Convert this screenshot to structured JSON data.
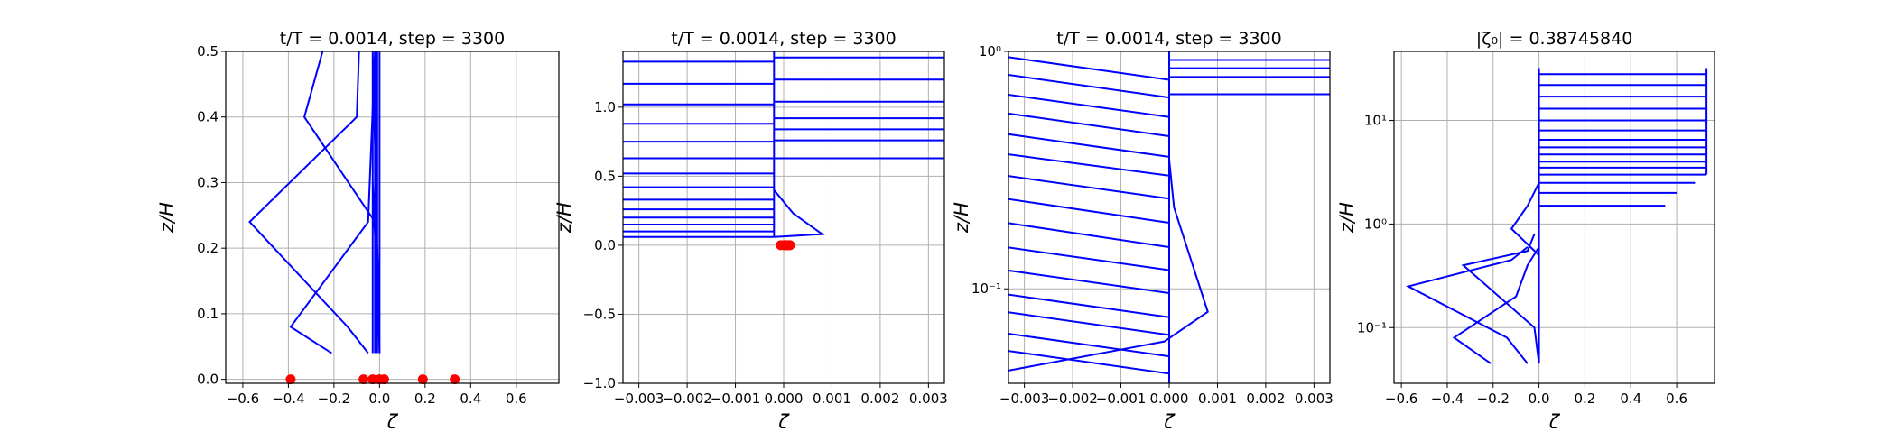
{
  "chart_data": [
    {
      "type": "line",
      "title": "t/T = 0.0014, step = 3300",
      "xlabel": "ζ",
      "ylabel": "z/H",
      "xlim": [
        -0.675,
        0.787
      ],
      "ylim": [
        -0.006,
        0.5
      ],
      "grid": true,
      "xticks": [
        {
          "value": -0.6,
          "label": "−0.6"
        },
        {
          "value": -0.4,
          "label": "−0.4"
        },
        {
          "value": -0.2,
          "label": "−0.2"
        },
        {
          "value": 0,
          "label": "0.0"
        },
        0.2,
        0.4,
        0.6
      ],
      "yticks": [
        {
          "value": 0,
          "label": "0.0"
        },
        0.1,
        0.2,
        0.3,
        0.4,
        0.5
      ],
      "series": [
        {
          "color": "#0000ff",
          "x": [
            -0.21,
            -0.39,
            -0.05,
            -0.02
          ],
          "values": [
            0.04,
            0.08,
            0.24,
            0.5
          ]
        },
        {
          "color": "#0000ff",
          "x": [
            -0.05,
            -0.14,
            -0.57,
            -0.1,
            -0.09
          ],
          "values": [
            0.04,
            0.08,
            0.24,
            0.4,
            0.5
          ]
        },
        {
          "color": "#0000ff",
          "x": [
            0,
            -0.02,
            -0.33,
            -0.25
          ],
          "values": [
            0.04,
            0.24,
            0.4,
            0.5
          ]
        },
        {
          "color": "#0000ff",
          "x": [
            -0.03,
            -0.03,
            null,
            -0.02,
            -0.02,
            null,
            -0.01,
            -0.01,
            null,
            0,
            0,
            null,
            -0.03,
            0,
            null,
            -0.03,
            0
          ],
          "values": [
            0.04,
            0.5,
            null,
            0.04,
            0.5,
            null,
            0.04,
            0.5,
            null,
            0.04,
            0.5,
            null,
            0.5,
            0.06,
            null,
            0.3,
            0.05
          ]
        }
      ],
      "scatter": {
        "color": "#ff0000",
        "x": [
          -0.39,
          -0.07,
          -0.03,
          0,
          0.02,
          0.19,
          0.33
        ],
        "values": [
          0,
          0,
          0,
          0,
          0,
          0,
          0
        ]
      }
    },
    {
      "type": "line",
      "title": "t/T = 0.0014, step = 3300",
      "xlabel": "ζ",
      "ylabel": "z/H",
      "xlim": [
        -0.00333,
        0.00333
      ],
      "ylim": [
        -1,
        1.404
      ],
      "grid": true,
      "xticks": [
        {
          "value": -0.003,
          "label": "−0.003"
        },
        {
          "value": -0.002,
          "label": "−0.002"
        },
        {
          "value": -0.001,
          "label": "−0.001"
        },
        {
          "value": 0,
          "label": "0.000"
        },
        0.001,
        0.002,
        0.003
      ],
      "yticks": [
        {
          "value": -1,
          "label": "−1.0"
        },
        {
          "value": -0.5,
          "label": "−0.5"
        },
        {
          "value": 0,
          "label": "0.0"
        },
        0.5,
        {
          "value": 1,
          "label": "1.0"
        }
      ],
      "series": [
        {
          "color": "#0000ff",
          "x": [
            -0.0034,
            -0.0002,
            null,
            -0.0034,
            -0.0002,
            null,
            -0.0034,
            -0.0002,
            null,
            -0.0034,
            -0.0002,
            null,
            -0.0034,
            -0.0002,
            null,
            -0.0034,
            -0.0002,
            null,
            -0.0034,
            -0.0002,
            null,
            -0.0034,
            -0.0002,
            null,
            -0.0034,
            -0.0002,
            null,
            -0.0034,
            -0.0002,
            null,
            -0.0034,
            -0.0002,
            null,
            -0.0034,
            -0.0002,
            null,
            -0.0034,
            -0.0002,
            null,
            -0.0034,
            -0.0002
          ],
          "values": [
            0.06,
            0.06,
            null,
            0.1,
            0.1,
            null,
            0.15,
            0.15,
            null,
            0.2,
            0.2,
            null,
            0.26,
            0.26,
            null,
            0.33,
            0.33,
            null,
            0.42,
            0.42,
            null,
            0.52,
            0.52,
            null,
            0.63,
            0.63,
            null,
            0.75,
            0.75,
            null,
            0.88,
            0.88,
            null,
            1.02,
            1.02,
            null,
            1.17,
            1.17,
            null,
            1.33,
            1.33
          ]
        },
        {
          "color": "#0000ff",
          "x": [
            -0.0002,
            0.0034,
            null,
            -0.0002,
            0.0034,
            null,
            -0.0002,
            0.0034,
            null,
            -0.0002,
            0.0034,
            null,
            -0.0002,
            0.0034,
            null,
            -0.0002,
            0.0034,
            null,
            -0.0002,
            0.0034
          ],
          "values": [
            0.63,
            0.63,
            null,
            0.76,
            0.76,
            null,
            0.84,
            0.84,
            null,
            0.92,
            0.92,
            null,
            1.04,
            1.04,
            null,
            1.2,
            1.2,
            null,
            1.36,
            1.36
          ]
        },
        {
          "color": "#0000ff",
          "x": [
            -0.0002,
            -0.0002,
            null,
            -0.0002,
            0.0008,
            0.0002,
            -0.0002
          ],
          "values": [
            0.06,
            1.404,
            null,
            0.06,
            0.08,
            0.23,
            0.4
          ]
        }
      ],
      "scatter": {
        "color": "#ff0000",
        "x": [
          -6e-05,
          1e-05,
          4e-05,
          7e-05,
          0.0001,
          0.00013
        ],
        "values": [
          0,
          0,
          0,
          0,
          0,
          0
        ]
      }
    },
    {
      "type": "line",
      "title": "t/T = 0.0014, step = 3300",
      "xlabel": "ζ",
      "ylabel": "z/H",
      "xlim": [
        -0.00333,
        0.00333
      ],
      "ylim": [
        0.04,
        1
      ],
      "yscale": "log",
      "grid": true,
      "xticks": [
        {
          "value": -0.003,
          "label": "−0.003"
        },
        {
          "value": -0.002,
          "label": "−0.002"
        },
        {
          "value": -0.001,
          "label": "−0.001"
        },
        {
          "value": 0,
          "label": "0.000"
        },
        0.001,
        0.002,
        0.003
      ],
      "yticks": [
        {
          "value": 0.1,
          "label": "10⁻¹"
        },
        {
          "value": 1,
          "label": "10⁰"
        }
      ],
      "series": [
        {
          "color": "#0000ff",
          "x": [
            -0.0034,
            -2e-05,
            null,
            -0.0034,
            -2e-05,
            null,
            -0.0034,
            -2e-05,
            null,
            -0.0034,
            -2e-05,
            null,
            -0.0034,
            -2e-05,
            null,
            -0.0034,
            -2e-05,
            null,
            -0.0034,
            -2e-05,
            null,
            -0.0034,
            -2e-05,
            null,
            -0.0034,
            -2e-05,
            null,
            -0.0034,
            -2e-05,
            null,
            -0.0034,
            -2e-05,
            null,
            -0.0034,
            -2e-05,
            null,
            -0.0034,
            -2e-05,
            null,
            -0.0034,
            -2e-05,
            null,
            -0.0034,
            -2e-05
          ],
          "values": [
            0.95,
            0.76,
            null,
            0.8,
            0.64,
            null,
            0.66,
            0.53,
            null,
            0.55,
            0.44,
            null,
            0.45,
            0.36,
            null,
            0.37,
            0.3,
            null,
            0.3,
            0.24,
            null,
            0.24,
            0.19,
            null,
            0.19,
            0.15,
            null,
            0.15,
            0.12,
            null,
            0.12,
            0.096,
            null,
            0.095,
            0.076,
            null,
            0.08,
            0.064,
            null,
            0.065,
            0.052,
            null,
            0.055,
            0.044
          ]
        },
        {
          "color": "#0000ff",
          "x": [
            0,
            0,
            null,
            0,
            0.0034,
            null,
            0,
            0.0034,
            null,
            0,
            0.0034,
            null,
            0,
            0.0034
          ],
          "values": [
            0.04,
            1,
            null,
            0.92,
            0.92,
            null,
            0.85,
            0.85,
            null,
            0.78,
            0.78,
            null,
            0.66,
            0.66
          ]
        },
        {
          "color": "#0000ff",
          "x": [
            0,
            0.0001,
            0.0008,
            -0.0001,
            -0.0034
          ],
          "values": [
            0.35,
            0.22,
            0.08,
            0.06,
            0.045
          ]
        }
      ]
    },
    {
      "type": "line",
      "title": "|ζ₀| = 0.38745840",
      "xlabel": "ζ",
      "ylabel": "z/H",
      "xlim": [
        -0.632,
        0.765
      ],
      "ylim": [
        0.029,
        46.4
      ],
      "yscale": "log",
      "grid": true,
      "xticks": [
        {
          "value": -0.6,
          "label": "−0.6"
        },
        {
          "value": -0.4,
          "label": "−0.4"
        },
        {
          "value": -0.2,
          "label": "−0.2"
        },
        {
          "value": 0,
          "label": "0.0"
        },
        0.2,
        0.4,
        0.6
      ],
      "yticks": [
        {
          "value": 0.1,
          "label": "10⁻¹"
        },
        {
          "value": 1,
          "label": "10⁰"
        },
        {
          "value": 10,
          "label": "10¹"
        }
      ],
      "series": [
        {
          "color": "#0000ff",
          "x": [
            -0.21,
            -0.37,
            -0.1,
            -0.05,
            0
          ],
          "values": [
            0.045,
            0.08,
            0.2,
            0.4,
            0.6
          ]
        },
        {
          "color": "#0000ff",
          "x": [
            -0.05,
            -0.14,
            -0.57,
            -0.12,
            -0.05
          ],
          "values": [
            0.045,
            0.08,
            0.25,
            0.45,
            0.6
          ]
        },
        {
          "color": "#0000ff",
          "x": [
            0,
            -0.02,
            -0.33,
            -0.05,
            -0.02
          ],
          "values": [
            0.045,
            0.1,
            0.4,
            0.55,
            0.8
          ]
        },
        {
          "color": "#0000ff",
          "x": [
            0,
            0,
            null,
            0,
            -0.12,
            -0.05,
            0
          ],
          "values": [
            0.045,
            32,
            null,
            0.5,
            0.9,
            1.5,
            2.5
          ]
        },
        {
          "color": "#0000ff",
          "x": [
            0,
            0.55,
            null,
            0,
            0.6,
            null,
            0,
            0.68,
            null,
            0,
            0.73,
            null,
            0,
            0.73,
            null,
            0,
            0.73,
            null,
            0,
            0.73,
            null,
            0,
            0.73,
            null,
            0,
            0.73,
            null,
            0,
            0.73,
            null,
            0,
            0.73,
            null,
            0,
            0.73,
            null,
            0,
            0.73,
            null,
            0,
            0.73,
            null,
            0,
            0.73,
            null,
            0.73,
            0.73
          ],
          "values": [
            1.5,
            1.5,
            null,
            2,
            2,
            null,
            2.5,
            2.5,
            null,
            3,
            3,
            null,
            3.5,
            3.5,
            null,
            4,
            4,
            null,
            4.7,
            4.7,
            null,
            5.5,
            5.5,
            null,
            6.5,
            6.5,
            null,
            8,
            8,
            null,
            10,
            10,
            null,
            13,
            13,
            null,
            17,
            17,
            null,
            22,
            22,
            null,
            28,
            28,
            null,
            3,
            32
          ]
        }
      ]
    }
  ]
}
